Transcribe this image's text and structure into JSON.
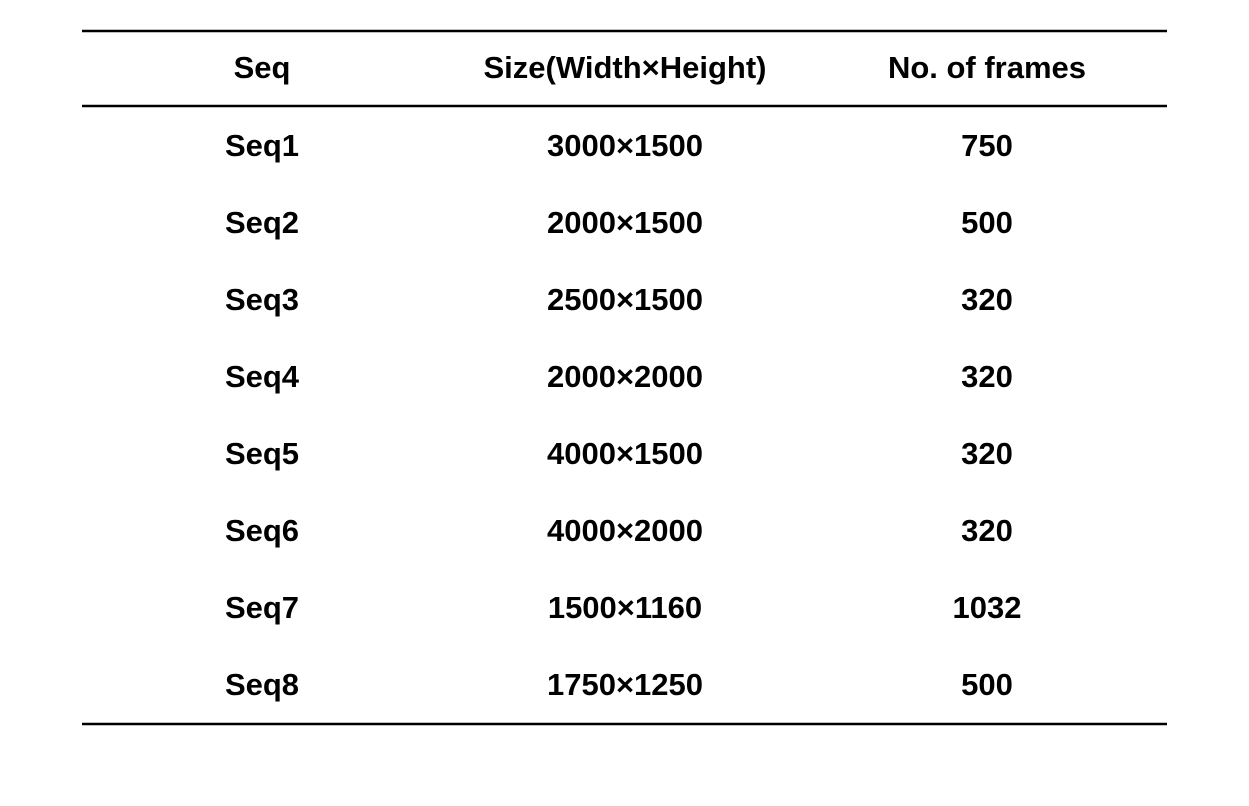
{
  "table": {
    "header": [
      "Seq",
      "Size(Width×Height)",
      "No. of frames"
    ],
    "rows": [
      [
        "Seq1",
        "3000×1500",
        750
      ],
      [
        "Seq2",
        "2000×1500",
        500
      ],
      [
        "Seq3",
        "2500×1500",
        320
      ],
      [
        "Seq4",
        "2000×2000",
        320
      ],
      [
        "Seq5",
        "4000×1500",
        320
      ],
      [
        "Seq6",
        "4000×2000",
        320
      ],
      [
        "Seq7",
        "1500×1160",
        1032
      ],
      [
        "Seq8",
        "1750×1250",
        500
      ]
    ]
  }
}
